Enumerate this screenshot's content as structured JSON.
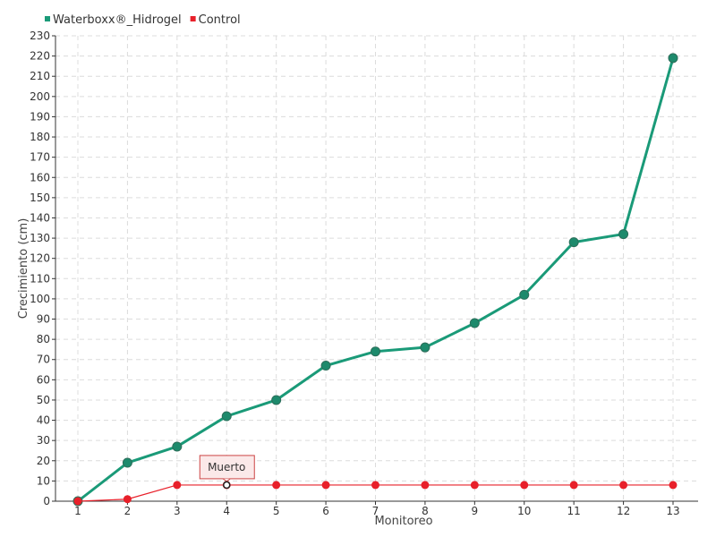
{
  "chart_data": {
    "type": "line",
    "title": "",
    "xlabel": "Monitoreo",
    "ylabel": "Crecimiento (cm)",
    "x": [
      1,
      2,
      3,
      4,
      5,
      6,
      7,
      8,
      9,
      10,
      11,
      12,
      13
    ],
    "ylim": [
      0,
      230
    ],
    "ytick_step": 10,
    "grid": true,
    "legend_position": "top-left",
    "series": [
      {
        "name": "Waterboxx®_Hidrogel",
        "color": "#1a9a78",
        "marker_color": "#1d8a6c",
        "values": [
          0,
          19,
          27,
          42,
          50,
          67,
          74,
          76,
          88,
          102,
          128,
          132,
          219
        ]
      },
      {
        "name": "Control",
        "color": "#e8202a",
        "marker_color": "#e8202a",
        "values": [
          0,
          1,
          8,
          8,
          8,
          8,
          8,
          8,
          8,
          8,
          8,
          8,
          8
        ]
      }
    ],
    "annotations": [
      {
        "text": "Muerto",
        "series": 1,
        "x": 4,
        "y": 8
      }
    ]
  }
}
